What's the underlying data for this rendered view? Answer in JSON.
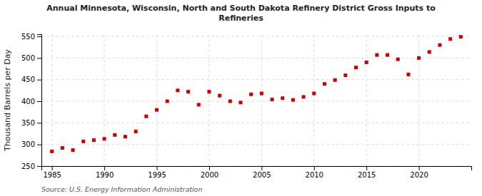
{
  "chart_data": {
    "type": "scatter",
    "title": "Annual Minnesota, Wisconsin, North and South Dakota Refinery District Gross Inputs to\nRefineries",
    "y_label": "Thousand Barrels per Day",
    "annotations": [
      "Source: U.S. Energy Information Administration"
    ],
    "x": [
      1985,
      1986,
      1987,
      1988,
      1989,
      1990,
      1991,
      1992,
      1993,
      1994,
      1995,
      1996,
      1997,
      1998,
      1999,
      2000,
      2001,
      2002,
      2003,
      2004,
      2005,
      2006,
      2007,
      2008,
      2009,
      2010,
      2011,
      2012,
      2013,
      2014,
      2015,
      2016,
      2017,
      2018,
      2019,
      2020,
      2021,
      2022,
      2023,
      2024
    ],
    "values": [
      284,
      292,
      287,
      307,
      310,
      313,
      322,
      318,
      330,
      365,
      380,
      400,
      425,
      422,
      392,
      422,
      413,
      400,
      397,
      416,
      418,
      404,
      407,
      403,
      410,
      418,
      440,
      449,
      460,
      478,
      490,
      507,
      507,
      497,
      462,
      500,
      514,
      530,
      544,
      549
    ],
    "color": "#cc0000",
    "marker": "square",
    "xlim": [
      1984,
      2025
    ],
    "ylim": [
      250,
      555
    ],
    "xticks": [
      1985,
      1990,
      1995,
      2000,
      2005,
      2010,
      2015,
      2020
    ],
    "yticks": [
      250,
      300,
      350,
      400,
      450,
      500,
      550
    ],
    "grid": true
  }
}
